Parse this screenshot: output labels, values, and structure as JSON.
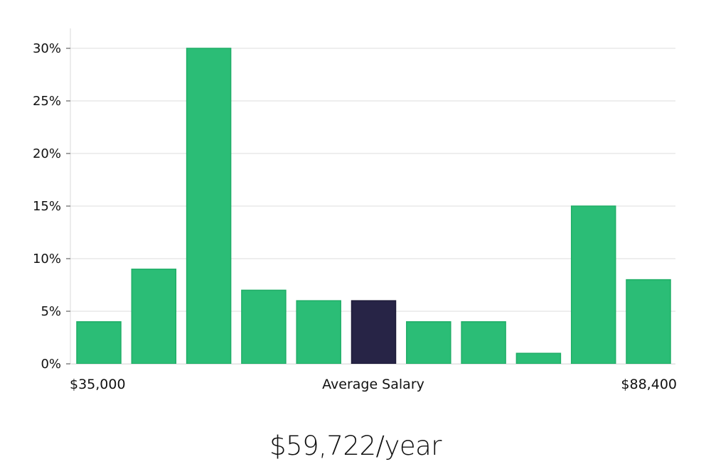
{
  "chart_data": {
    "type": "bar",
    "categories": [
      "1",
      "2",
      "3",
      "4",
      "5",
      "6",
      "7",
      "8",
      "9",
      "10",
      "11"
    ],
    "values": [
      4,
      9,
      30,
      7,
      6,
      6,
      4,
      4,
      1,
      15,
      8
    ],
    "highlight_index": 5,
    "y_ticks": [
      "0%",
      "5%",
      "10%",
      "15%",
      "20%",
      "25%",
      "30%"
    ],
    "ylim": [
      0,
      32
    ],
    "x_labels": {
      "left": "$35,000",
      "center": "Average Salary",
      "right": "$88,400"
    },
    "grid": true,
    "colors": {
      "bar": "#2bbd76",
      "bar_border": "#1fae67",
      "highlight": "#272446",
      "grid": "#e3e3e3",
      "axis": "#d9d9d9"
    }
  },
  "summary": {
    "average_salary": "$59,722/year"
  }
}
